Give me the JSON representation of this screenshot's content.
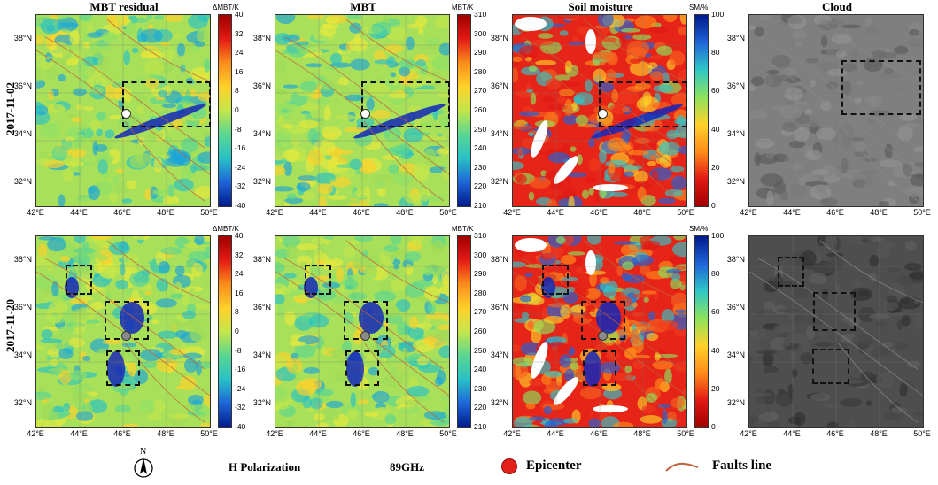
{
  "columns": [
    "MBT residual",
    "MBT",
    "Soil moisture",
    "Cloud"
  ],
  "rows": [
    "2017-11-02",
    "2017-11-20"
  ],
  "lat_ticks": [
    "38°N",
    "36°N",
    "34°N",
    "32°N"
  ],
  "lon_ticks": [
    "42°E",
    "44°E",
    "46°E",
    "48°E",
    "50°E"
  ],
  "colorbars": [
    {
      "label": "ΔMBT/K",
      "ticks": [
        "40",
        "32",
        "24",
        "16",
        "8",
        "0",
        "-8",
        "-16",
        "-24",
        "-32",
        "-40"
      ]
    },
    {
      "label": "MBT/K",
      "ticks": [
        "310",
        "300",
        "290",
        "280",
        "270",
        "260",
        "250",
        "240",
        "230",
        "220",
        "210"
      ]
    },
    {
      "label": "SM/%",
      "ticks": [
        "100",
        "80",
        "60",
        "40",
        "20",
        "0"
      ]
    }
  ],
  "legend": {
    "north": "N",
    "polarization": "H Polarization",
    "frequency": "89GHz",
    "epicenter": "Epicenter",
    "faults": "Faults line"
  },
  "colors": {
    "epicenter": "#e3201c",
    "fault": "#c0623a",
    "box": "#111111"
  }
}
